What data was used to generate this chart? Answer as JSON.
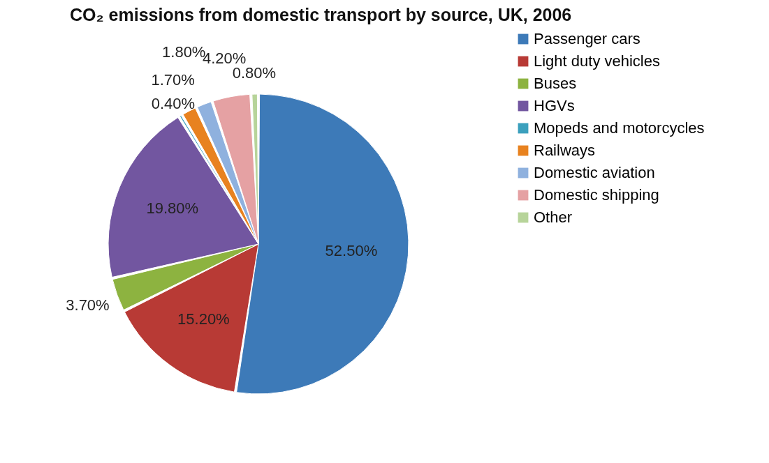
{
  "chart_data": {
    "type": "pie",
    "title": "CO₂ emissions from domestic transport by source, UK, 2006",
    "categories": [
      "Passenger cars",
      "Light duty vehicles",
      "Buses",
      "HGVs",
      "Mopeds and motorcycles",
      "Railways",
      "Domestic aviation",
      "Domestic shipping",
      "Other"
    ],
    "values": [
      52.5,
      15.2,
      3.7,
      19.8,
      0.4,
      1.7,
      1.8,
      4.2,
      0.8
    ],
    "value_labels": [
      "52.50%",
      "15.20%",
      "3.70%",
      "19.80%",
      "0.40%",
      "1.70%",
      "1.80%",
      "4.20%",
      "0.80%"
    ],
    "colors": [
      "#3d7ab8",
      "#b83a35",
      "#8db340",
      "#7256a0",
      "#3ba0bd",
      "#e8821f",
      "#8fb1de",
      "#e5a1a3",
      "#b7d49a"
    ],
    "legend": "right"
  }
}
